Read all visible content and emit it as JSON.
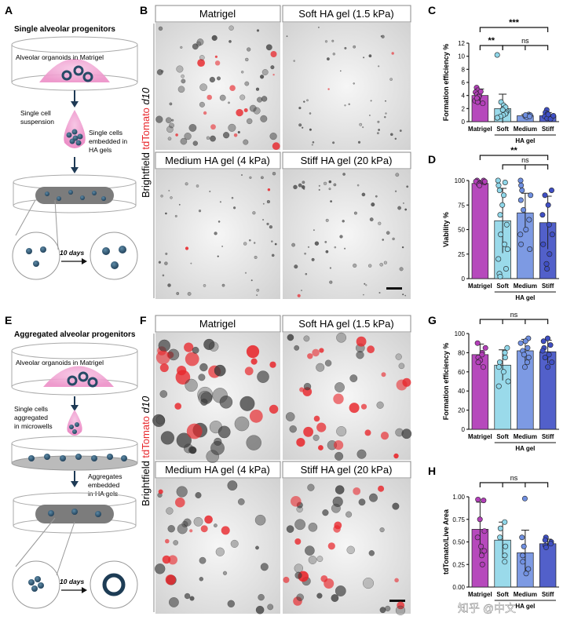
{
  "panels": {
    "A": {
      "letter": "A",
      "title": "Single alveolar progenitors",
      "labels": [
        "Alveolar organoids in Matrigel",
        "Single cell",
        "suspension",
        "Single cells",
        "embedded in",
        "HA gels",
        "10 days"
      ]
    },
    "E": {
      "letter": "E",
      "title": "Aggregated alveolar progenitors",
      "labels": [
        "Alveolar organoids in Matrigel",
        "Single cells",
        "aggregated",
        "in microwells",
        "Aggregates",
        "embedded",
        "in HA gels",
        "10 days"
      ]
    },
    "B": {
      "letter": "B",
      "axis_left": "Brightfield",
      "axis_mid": "tdTomato",
      "axis_right": "d10",
      "images": [
        "Matrigel",
        "Soft HA gel (1.5 kPa)",
        "Medium HA gel (4 kPa)",
        "Stiff HA gel (20 kPa)"
      ]
    },
    "F": {
      "letter": "F",
      "axis_left": "Brightfield",
      "axis_mid": "tdTomato",
      "axis_right": "d10",
      "images": [
        "Matrigel",
        "Soft HA gel (1.5 kPa)",
        "Medium HA gel (4 kPa)",
        "Stiff HA gel (20 kPa)"
      ]
    }
  },
  "watermark": "知乎 @中文",
  "colors": {
    "matrigel": "#b23fb8",
    "soft": "#8fd6e8",
    "medium": "#6f8fe0",
    "stiff": "#3f4fc4",
    "red": "#e8262b"
  },
  "chart_data": [
    {
      "id": "C",
      "letter": "C",
      "type": "bar",
      "ylabel": "Formation efficiency %",
      "categories": [
        "Matrigel",
        "Soft",
        "Medium",
        "Stiff"
      ],
      "group_label": "HA gel",
      "values": [
        4.0,
        2.0,
        0.9,
        0.9
      ],
      "errors": [
        1.0,
        2.2,
        0.2,
        0.5
      ],
      "ylim": [
        0,
        12
      ],
      "yticks": [
        0,
        2,
        4,
        6,
        8,
        10,
        12
      ],
      "points": [
        [
          5.2,
          4.8,
          4.5,
          4.2,
          4.0,
          3.8,
          3.5,
          3.2,
          3.0,
          2.8,
          4.6,
          3.6
        ],
        [
          10.2,
          3.0,
          2.5,
          2.0,
          1.6,
          1.4,
          1.2,
          1.0,
          0.8,
          0.6,
          2.2,
          1.8
        ],
        [
          1.1,
          1.0,
          0.9,
          0.9,
          0.8,
          0.7,
          1.0,
          0.8
        ],
        [
          1.8,
          1.4,
          1.2,
          1.0,
          0.8,
          0.6,
          0.5,
          0.4,
          0.9,
          1.1
        ]
      ],
      "significance": [
        {
          "from": 0,
          "to": 3,
          "label": "***"
        },
        {
          "from": 0,
          "to": 1,
          "label": "**"
        },
        {
          "from": 1,
          "to": 3,
          "label": "ns"
        }
      ]
    },
    {
      "id": "D",
      "letter": "D",
      "type": "bar",
      "ylabel": "Viability %",
      "categories": [
        "Matrigel",
        "Soft",
        "Medium",
        "Stiff"
      ],
      "group_label": "HA gel",
      "values": [
        97,
        59,
        67,
        57
      ],
      "errors": [
        3,
        33,
        20,
        27
      ],
      "ylim": [
        0,
        100
      ],
      "yticks": [
        0,
        25,
        50,
        75,
        100
      ],
      "points": [
        [
          100,
          99,
          98,
          97,
          96,
          95,
          100,
          99
        ],
        [
          100,
          98,
          95,
          90,
          85,
          75,
          65,
          55,
          45,
          35,
          30,
          20,
          10,
          5,
          2
        ],
        [
          100,
          95,
          90,
          85,
          80,
          70,
          60,
          50,
          45,
          35,
          30
        ],
        [
          90,
          85,
          75,
          65,
          55,
          45,
          35,
          25,
          15,
          10
        ]
      ],
      "significance": [
        {
          "from": 0,
          "to": 3,
          "label": "**"
        },
        {
          "from": 1,
          "to": 3,
          "label": "ns"
        }
      ]
    },
    {
      "id": "G",
      "letter": "G",
      "type": "bar",
      "ylabel": "Formation efficiency %",
      "categories": [
        "Matrigel",
        "Soft",
        "Medium",
        "Stiff"
      ],
      "group_label": "HA gel",
      "values": [
        78,
        67,
        82,
        81
      ],
      "errors": [
        11,
        16,
        12,
        12
      ],
      "ylim": [
        0,
        100
      ],
      "yticks": [
        0,
        20,
        40,
        60,
        80,
        100
      ],
      "points": [
        [
          90,
          85,
          80,
          78,
          75,
          72,
          70,
          65
        ],
        [
          85,
          80,
          75,
          70,
          65,
          60,
          50,
          45
        ],
        [
          95,
          92,
          90,
          85,
          82,
          78,
          75,
          70,
          65
        ],
        [
          95,
          92,
          88,
          85,
          82,
          78,
          75,
          70,
          65
        ]
      ],
      "significance": [
        {
          "from": 0,
          "to": 3,
          "label": "ns"
        }
      ]
    },
    {
      "id": "H",
      "letter": "H",
      "type": "bar",
      "ylabel": "tdTomato/Live Area",
      "categories": [
        "Matrigel",
        "Soft",
        "Medium",
        "Stiff"
      ],
      "group_label": "HA gel",
      "values": [
        0.64,
        0.52,
        0.38,
        0.48
      ],
      "errors": [
        0.3,
        0.2,
        0.25,
        0.05
      ],
      "ylim": [
        0.0,
        1.0
      ],
      "yticks": [
        0.0,
        0.25,
        0.5,
        0.75,
        1.0
      ],
      "yticklabels": [
        "0.00",
        "0.25",
        "0.50",
        "0.75",
        "1.00"
      ],
      "points": [
        [
          0.97,
          0.96,
          0.75,
          0.62,
          0.55,
          0.45,
          0.4,
          0.35,
          0.25
        ],
        [
          0.72,
          0.65,
          0.55,
          0.45,
          0.35,
          0.28
        ],
        [
          0.98,
          0.55,
          0.45,
          0.35,
          0.28,
          0.2,
          0.15
        ],
        [
          0.55,
          0.52,
          0.5,
          0.48,
          0.46,
          0.44
        ]
      ],
      "significance": [
        {
          "from": 0,
          "to": 3,
          "label": "ns"
        }
      ]
    }
  ]
}
